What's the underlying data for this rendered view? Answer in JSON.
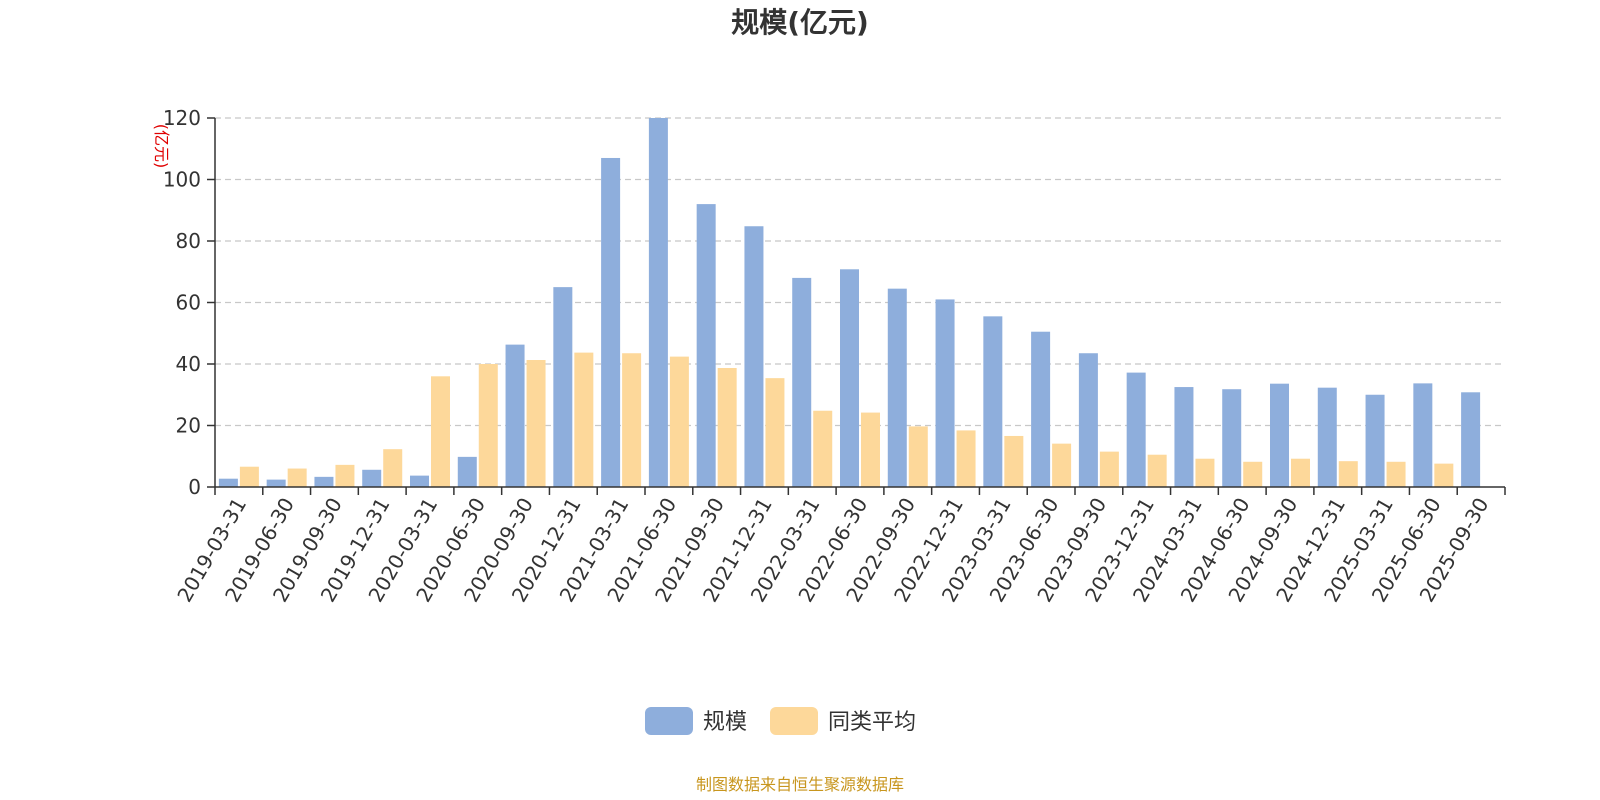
{
  "chart_data": {
    "type": "bar",
    "title": "规模(亿元)",
    "ylabel": "(亿元)",
    "xlabel": "",
    "ylim": [
      0,
      120
    ],
    "yticks": [
      0,
      20,
      40,
      60,
      80,
      100,
      120
    ],
    "grid": true,
    "legend_position": "bottom",
    "categories": [
      "2019-03-31",
      "2019-06-30",
      "2019-09-30",
      "2019-12-31",
      "2020-03-31",
      "2020-06-30",
      "2020-09-30",
      "2020-12-31",
      "2021-03-31",
      "2021-06-30",
      "2021-09-30",
      "2021-12-31",
      "2022-03-31",
      "2022-06-30",
      "2022-09-30",
      "2022-12-31",
      "2023-03-31",
      "2023-06-30",
      "2023-09-30",
      "2023-12-31",
      "2024-03-31",
      "2024-06-30",
      "2024-09-30",
      "2024-12-31",
      "2025-03-31",
      "2025-06-30",
      "2025-09-30"
    ],
    "series": [
      {
        "name": "规模",
        "color": "#8eaedc",
        "values": [
          2.7,
          2.4,
          3.3,
          5.6,
          3.7,
          9.8,
          46.3,
          65.0,
          107.0,
          120.0,
          92.0,
          84.8,
          68.0,
          70.8,
          64.5,
          61.0,
          55.5,
          50.5,
          43.5,
          37.2,
          32.5,
          31.8,
          33.6,
          32.3,
          30.0,
          33.7,
          30.8
        ]
      },
      {
        "name": "同类平均",
        "color": "#fdd89a",
        "values": [
          6.6,
          6.0,
          7.2,
          12.3,
          36.0,
          40.0,
          41.3,
          43.7,
          43.5,
          42.4,
          38.7,
          35.4,
          24.8,
          24.2,
          19.7,
          18.4,
          16.6,
          14.1,
          11.5,
          10.5,
          9.2,
          8.2,
          9.2,
          8.4,
          8.2,
          7.6,
          null
        ]
      }
    ]
  },
  "footer": {
    "source": "制图数据来自恒生聚源数据库"
  }
}
